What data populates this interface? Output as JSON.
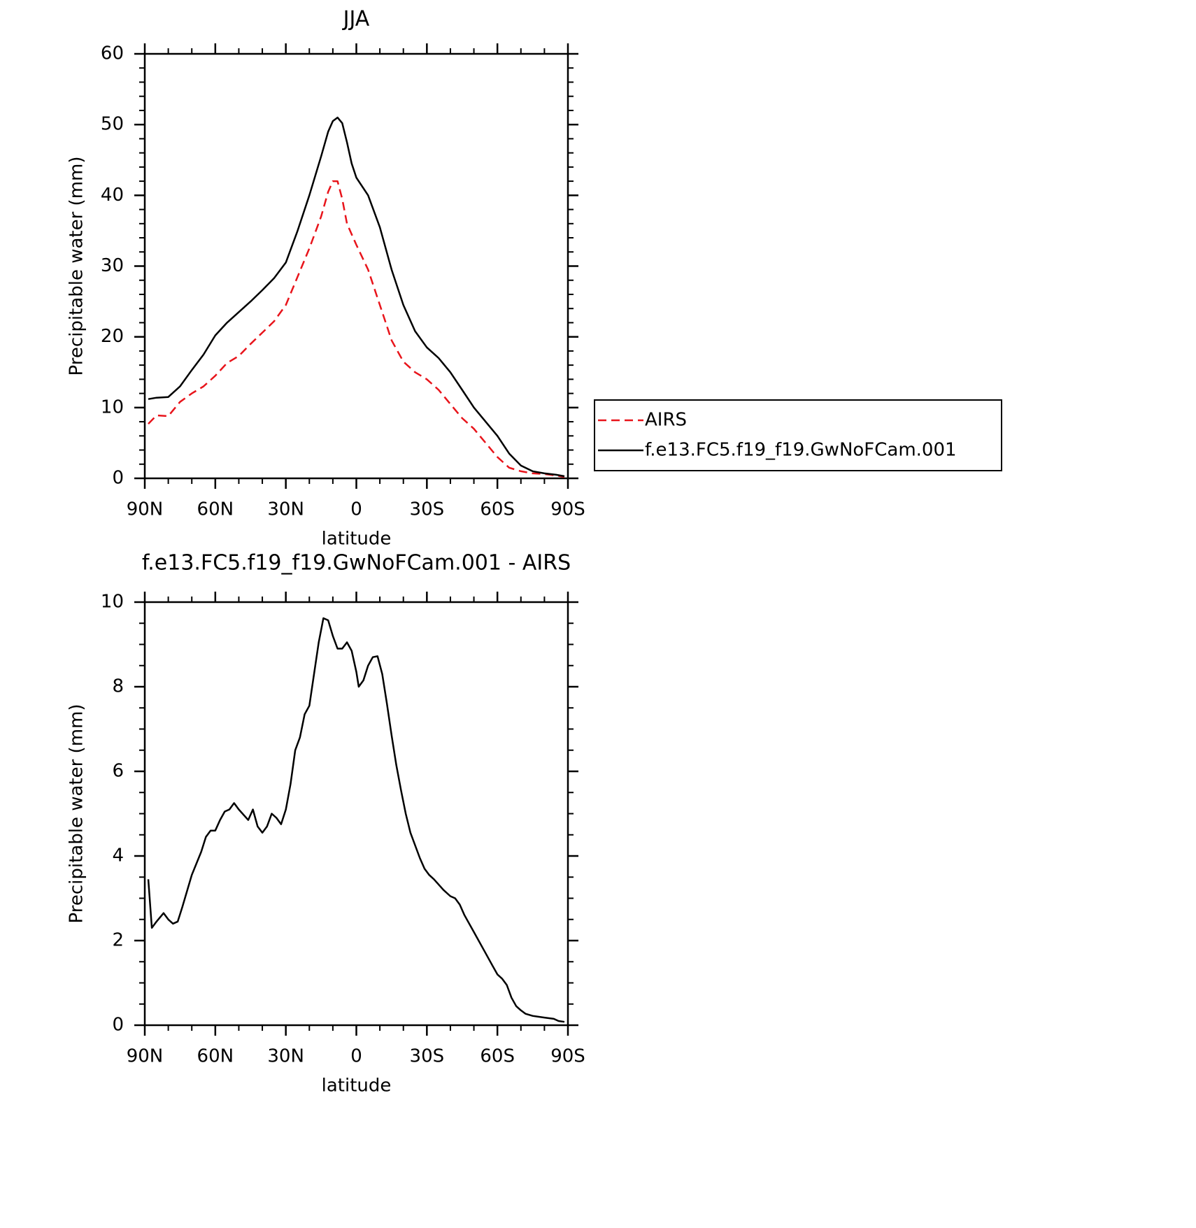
{
  "chart_data": [
    {
      "type": "line",
      "title": "JJA",
      "x_label": "latitude",
      "y_label": "Precipitable water (mm)",
      "xlim": [
        90,
        -90
      ],
      "xticks": [
        {
          "value": 90,
          "label": "90N"
        },
        {
          "value": 60,
          "label": "60N"
        },
        {
          "value": 30,
          "label": "30N"
        },
        0,
        {
          "value": -30,
          "label": "30S"
        },
        {
          "value": -60,
          "label": "60S"
        },
        {
          "value": -90,
          "label": "90S"
        }
      ],
      "ylim": [
        0,
        60
      ],
      "yticks": [
        0,
        10,
        20,
        30,
        40,
        50,
        60
      ],
      "legend": "right",
      "x": [
        88.5,
        85,
        80,
        75,
        70,
        65,
        60,
        55,
        50,
        45,
        40,
        35,
        30,
        25,
        20,
        15,
        12,
        10,
        8,
        6,
        4,
        2,
        0,
        -5,
        -10,
        -15,
        -20,
        -25,
        -30,
        -35,
        -40,
        -45,
        -50,
        -55,
        -60,
        -65,
        -70,
        -75,
        -80,
        -85,
        -88.5
      ],
      "series": [
        {
          "name": "AIRS",
          "color": "#e8141b",
          "line_style": "dashed",
          "values": [
            7.7,
            8.9,
            8.8,
            10.8,
            12,
            13,
            14.5,
            16.3,
            17.3,
            19,
            20.6,
            22.2,
            24.5,
            28.5,
            32.5,
            37,
            40.5,
            42,
            42,
            39.5,
            36,
            34.5,
            33,
            29.5,
            24.5,
            19.5,
            16.5,
            15,
            14,
            12.5,
            10.5,
            8.5,
            7,
            5,
            3,
            1.5,
            1,
            0.7,
            0.6,
            0.4,
            0.2
          ]
        },
        {
          "name": "f.e13.FC5.f19_f19.GwNoFCam.001",
          "color": "#000000",
          "line_style": "solid",
          "values": [
            11.2,
            11.4,
            11.5,
            13,
            15.3,
            17.5,
            20.2,
            22,
            23.5,
            25,
            26.6,
            28.3,
            30.5,
            35,
            40,
            45.5,
            49,
            50.5,
            51,
            50.2,
            47.5,
            44.5,
            42.5,
            40,
            35.5,
            29.5,
            24.5,
            20.8,
            18.5,
            17,
            15,
            12.5,
            10,
            8,
            6,
            3.5,
            1.8,
            1,
            0.7,
            0.5,
            0.3
          ]
        }
      ]
    },
    {
      "type": "line",
      "title": "f.e13.FC5.f19_f19.GwNoFCam.001 - AIRS",
      "x_label": "latitude",
      "y_label": "Precipitable water (mm)",
      "xlim": [
        90,
        -90
      ],
      "xticks": [
        {
          "value": 90,
          "label": "90N"
        },
        {
          "value": 60,
          "label": "60N"
        },
        {
          "value": 30,
          "label": "30N"
        },
        0,
        {
          "value": -30,
          "label": "30S"
        },
        {
          "value": -60,
          "label": "60S"
        },
        {
          "value": -90,
          "label": "90S"
        }
      ],
      "ylim": [
        0,
        10
      ],
      "yticks": [
        0,
        2,
        4,
        6,
        8,
        10
      ],
      "x": [
        88.5,
        87,
        85,
        82,
        80,
        78,
        76,
        74,
        70,
        66,
        64,
        62,
        60,
        58,
        56,
        54,
        52,
        50,
        46,
        44,
        42,
        40,
        38,
        36,
        34,
        32,
        30,
        28,
        26,
        24,
        22,
        20,
        18,
        16,
        14,
        12,
        10,
        8,
        6,
        4,
        2,
        0,
        -1,
        -3,
        -5,
        -7,
        -9,
        -11,
        -13,
        -15,
        -17,
        -19,
        -21,
        -23,
        -27,
        -29,
        -31,
        -33,
        -37,
        -40,
        -42,
        -44,
        -46,
        -50,
        -55,
        -58,
        -60,
        -62,
        -64,
        -66,
        -68,
        -70,
        -72,
        -75,
        -80,
        -84,
        -86,
        -88.5
      ],
      "series": [
        {
          "color": "#000000",
          "line_style": "solid",
          "values": [
            3.45,
            2.3,
            2.45,
            2.65,
            2.5,
            2.4,
            2.45,
            2.8,
            3.55,
            4.1,
            4.45,
            4.6,
            4.6,
            4.85,
            5.05,
            5.1,
            5.25,
            5.1,
            4.85,
            5.1,
            4.7,
            4.55,
            4.7,
            5.0,
            4.9,
            4.75,
            5.1,
            5.7,
            6.5,
            6.8,
            7.35,
            7.55,
            8.3,
            9.05,
            9.62,
            9.57,
            9.2,
            8.9,
            8.9,
            9.05,
            8.85,
            8.35,
            8.0,
            8.15,
            8.5,
            8.7,
            8.72,
            8.3,
            7.6,
            6.85,
            6.15,
            5.55,
            5.0,
            4.55,
            3.95,
            3.7,
            3.55,
            3.45,
            3.2,
            3.05,
            3.0,
            2.85,
            2.6,
            2.2,
            1.7,
            1.4,
            1.2,
            1.1,
            0.95,
            0.65,
            0.45,
            0.35,
            0.27,
            0.22,
            0.18,
            0.15,
            0.1,
            0.08
          ]
        }
      ]
    }
  ]
}
